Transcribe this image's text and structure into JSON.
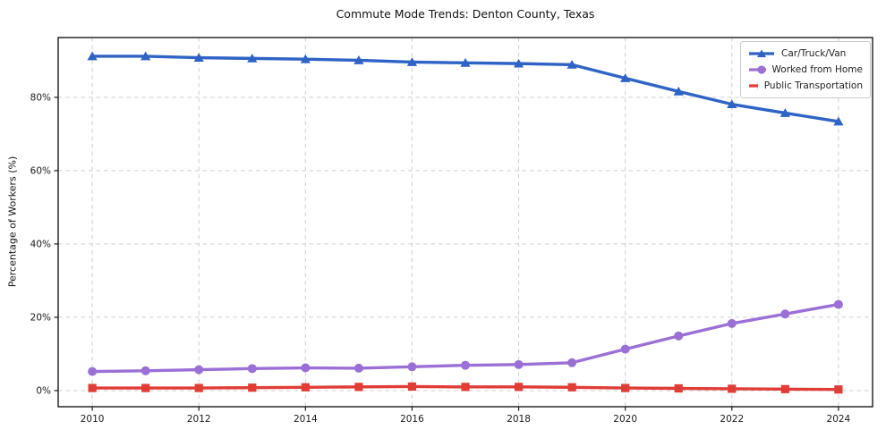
{
  "figure": {
    "title": "Commute Mode Trends: Denton County, Texas",
    "y_axis_label": "Percentage of Workers (%)"
  },
  "chart_data": {
    "type": "line",
    "title": "Commute Mode Trends: Denton County, Texas",
    "xlabel": "",
    "ylabel": "Percentage of Workers (%)",
    "grid": true,
    "legend_position": "upper-right",
    "x": [
      2010,
      2011,
      2012,
      2013,
      2014,
      2015,
      2016,
      2017,
      2018,
      2019,
      2020,
      2021,
      2022,
      2023,
      2024
    ],
    "xlim": [
      2009.36,
      2024.64
    ],
    "ylim": [
      -4.4,
      96.3
    ],
    "x_ticks": [
      {
        "v": 2010,
        "label": "2010"
      },
      {
        "v": 2012,
        "label": "2012"
      },
      {
        "v": 2014,
        "label": "2014"
      },
      {
        "v": 2016,
        "label": "2016"
      },
      {
        "v": 2018,
        "label": "2018"
      },
      {
        "v": 2020,
        "label": "2020"
      },
      {
        "v": 2022,
        "label": "2022"
      },
      {
        "v": 2024,
        "label": "2024"
      }
    ],
    "y_ticks": [
      {
        "v": 0,
        "label": "0%"
      },
      {
        "v": 20,
        "label": "20%"
      },
      {
        "v": 40,
        "label": "40%"
      },
      {
        "v": 60,
        "label": "60%"
      },
      {
        "v": 80,
        "label": "80%"
      }
    ],
    "series": [
      {
        "name": "Car/Truck/Van",
        "color": "#2f63c5",
        "marker": "triangle",
        "marker_icon": "triangle-marker-icon",
        "values": [
          91.2,
          91.2,
          90.8,
          90.6,
          90.4,
          90.1,
          89.6,
          89.4,
          89.2,
          88.9,
          85.2,
          81.6,
          78.1,
          75.7,
          73.4
        ]
      },
      {
        "name": "Worked from Home",
        "color": "#9a70d6",
        "marker": "circle",
        "marker_icon": "circle-marker-icon",
        "values": [
          5.2,
          5.4,
          5.7,
          6.0,
          6.2,
          6.1,
          6.5,
          6.9,
          7.1,
          7.6,
          11.3,
          14.9,
          18.3,
          20.9,
          23.5
        ]
      },
      {
        "name": "Public Transportation",
        "color": "#e03d36",
        "marker": "square",
        "marker_icon": "square-marker-icon",
        "values": [
          0.7,
          0.7,
          0.7,
          0.8,
          0.9,
          1.0,
          1.1,
          1.0,
          1.0,
          0.9,
          0.7,
          0.6,
          0.5,
          0.4,
          0.3
        ]
      }
    ],
    "colors": {
      "grid": "#cfcfcf",
      "spine": "#1a1a1a",
      "tick_text": "#1a1a1a",
      "background": "#ffffff"
    }
  }
}
